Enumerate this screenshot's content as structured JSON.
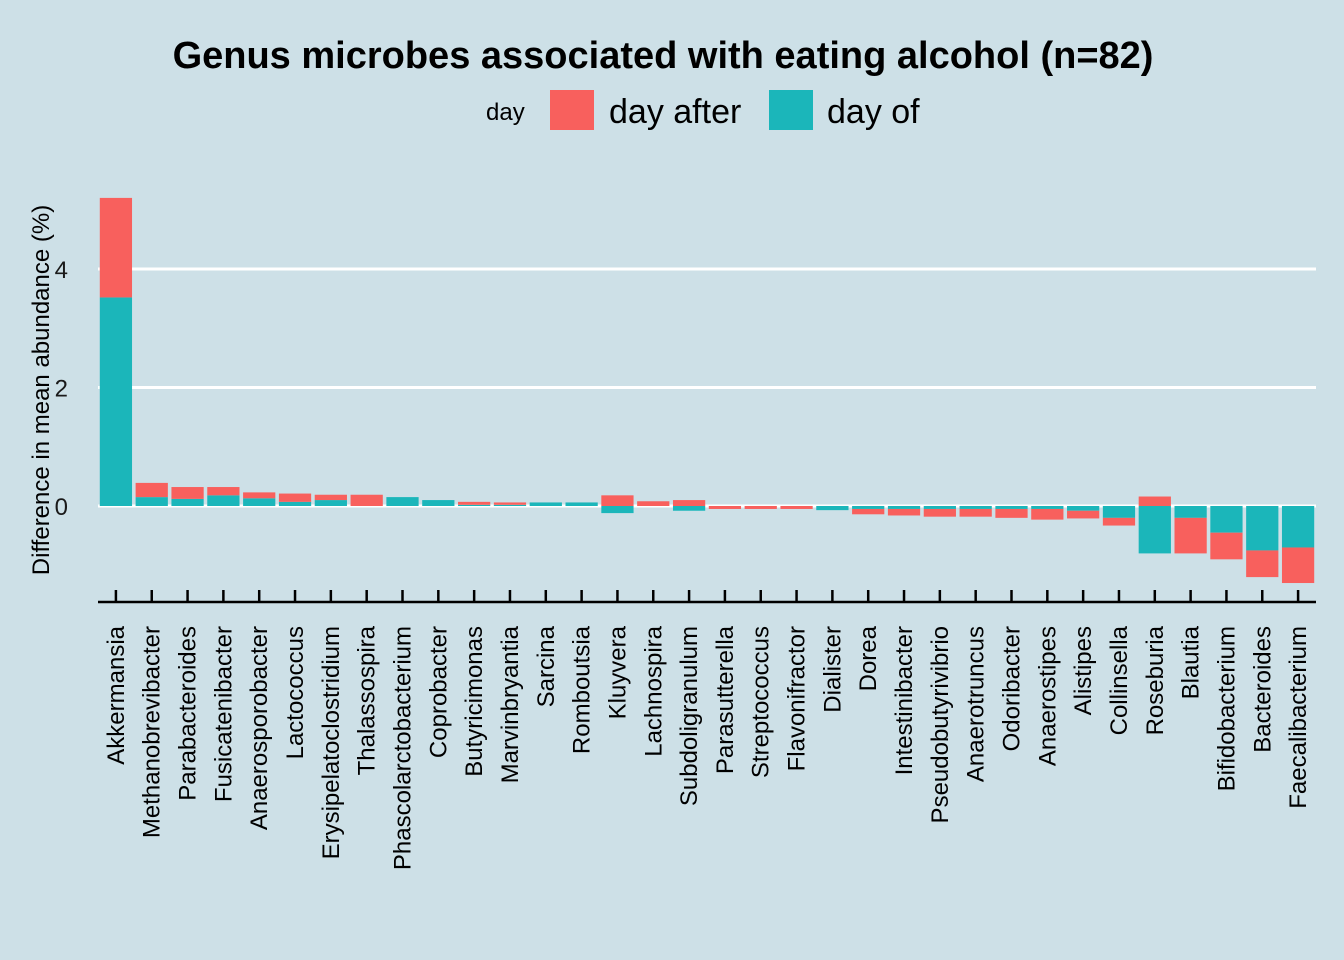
{
  "chart_data": {
    "type": "bar",
    "stacked": true,
    "title": "Genus microbes associated with eating alcohol (n=82)",
    "xlabel": "",
    "ylabel": "Difference in mean abundance (%)",
    "ylim": [
      -1.65,
      5.45
    ],
    "yticks": [
      0,
      2,
      4
    ],
    "grid": "horizontal major lines",
    "legend": {
      "title": "day",
      "placement": "top"
    },
    "colors": {
      "day after": "#f8605d",
      "day of": "#1bb6ba",
      "background": "#cde0e7",
      "grid": "#ffffff"
    },
    "categories": [
      "Akkermansia",
      "Methanobrevibacter",
      "Parabacteroides",
      "Fusicatenibacter",
      "Anaerosporobacter",
      "Lactococcus",
      "Erysipelatoclostridium",
      "Thalassospira",
      "Phascolarctobacterium",
      "Coprobacter",
      "Butyricimonas",
      "Marvinbryantia",
      "Sarcina",
      "Romboutsia",
      "Kluyvera",
      "Lachnospira",
      "Subdoligranulum",
      "Parasutterella",
      "Streptococcus",
      "Flavonifractor",
      "Dialister",
      "Dorea",
      "Intestinibacter",
      "Pseudobutyrivibrio",
      "Anaerotruncus",
      "Odoribacter",
      "Anaerostipes",
      "Alistipes",
      "Collinsella",
      "Roseburia",
      "Blautia",
      "Bifidobacterium",
      "Bacteroides",
      "Faecalibacterium"
    ],
    "series": [
      {
        "name": "day of",
        "values": [
          3.52,
          0.15,
          0.12,
          0.18,
          0.13,
          0.07,
          0.1,
          0.0,
          0.15,
          0.1,
          0.02,
          0.02,
          0.06,
          0.06,
          -0.12,
          0.0,
          -0.08,
          0.0,
          0.0,
          0.0,
          -0.07,
          -0.05,
          -0.05,
          -0.05,
          -0.05,
          -0.05,
          -0.05,
          -0.08,
          -0.2,
          -0.8,
          -0.2,
          -0.45,
          -0.75,
          -0.7
        ]
      },
      {
        "name": "day after",
        "values": [
          1.68,
          0.24,
          0.2,
          0.14,
          0.1,
          0.14,
          0.09,
          0.19,
          0.0,
          0.0,
          0.05,
          0.04,
          0.0,
          0.0,
          0.18,
          0.08,
          0.1,
          -0.05,
          -0.05,
          -0.05,
          0.0,
          -0.09,
          -0.11,
          -0.13,
          -0.13,
          -0.15,
          -0.18,
          -0.13,
          -0.13,
          0.16,
          -0.6,
          -0.45,
          -0.45,
          -0.6
        ]
      }
    ]
  }
}
